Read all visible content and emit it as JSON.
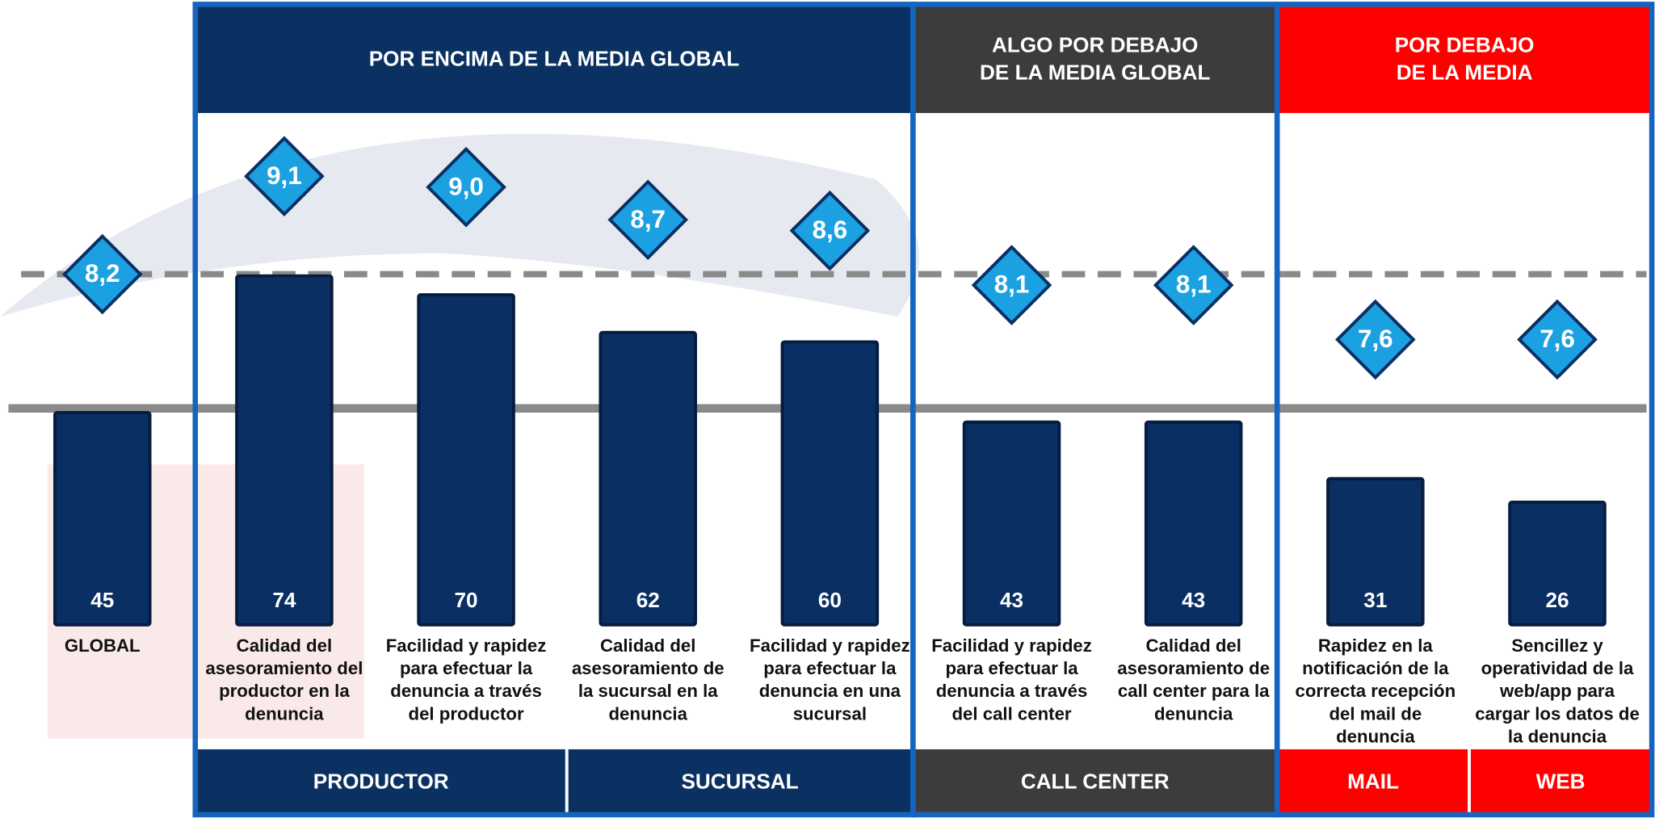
{
  "chart_data": {
    "type": "bar",
    "categories": [
      [
        "GLOBAL"
      ],
      [
        "Calidad del",
        "asesoramiento del",
        "productor en la",
        "denuncia"
      ],
      [
        "Facilidad y rapidez",
        "para efectuar la",
        "denuncia a través",
        "del productor"
      ],
      [
        "Calidad del",
        "asesoramiento de",
        "la sucursal en la",
        "denuncia"
      ],
      [
        "Facilidad y rapidez",
        "para efectuar la",
        "denuncia en una",
        "sucursal"
      ],
      [
        "Facilidad y rapidez",
        "para efectuar la",
        "denuncia a través",
        "del call center"
      ],
      [
        "Calidad del",
        "asesoramiento de",
        "call center para la",
        "denuncia"
      ],
      [
        "Rapidez en la",
        "notificación de la",
        "correcta recepción",
        "del mail de",
        "denuncia"
      ],
      [
        "Sencillez y",
        "operatividad de la",
        "web/app para",
        "cargar los datos de",
        "la denuncia"
      ]
    ],
    "series": [
      {
        "color": "#0a2f63",
        "values": [
          45,
          74,
          70,
          62,
          60,
          43,
          43,
          31,
          26
        ]
      },
      {
        "axis": "y2",
        "color": "#1ba1e2",
        "values": [
          8.2,
          9.1,
          9.0,
          8.7,
          8.6,
          8.1,
          8.1,
          7.6,
          7.6
        ],
        "value_labels": [
          "8,2",
          "9,1",
          "9,0",
          "8,7",
          "8,6",
          "8,1",
          "8,1",
          "7,6",
          "7,6"
        ]
      }
    ],
    "ylim": [
      0,
      109
    ],
    "y2lim": [
      4.98,
      9.7
    ],
    "groups": [
      {
        "title": [
          "POR ENCIMA DE LA MEDIA GLOBAL"
        ],
        "color": "#0a3161"
      },
      {
        "title": [
          "ALGO POR DEBAJO",
          "DE LA MEDIA GLOBAL"
        ],
        "color": "#3c3c3c"
      },
      {
        "title": [
          "POR DEBAJO",
          "DE LA MEDIA"
        ],
        "color": "#ff0000"
      }
    ],
    "sections": [
      {
        "label": "PRODUCTOR",
        "color": "#0a3161"
      },
      {
        "label": "SUCURSAL",
        "color": "#0a3161"
      },
      {
        "label": "CALL CENTER",
        "color": "#3c3c3c"
      },
      {
        "label": "MAIL",
        "color": "#ff0000"
      },
      {
        "label": "WEB",
        "color": "#ff0000"
      }
    ]
  }
}
